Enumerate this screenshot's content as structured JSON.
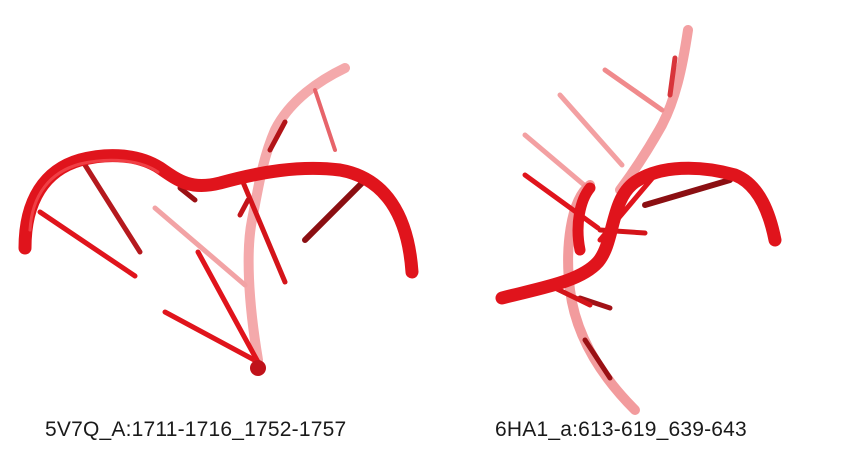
{
  "structures": [
    {
      "label": "5V7Q_A:1711-1716_1752-1757"
    },
    {
      "label": "6HA1_a:613-619_639-643"
    }
  ],
  "colors": {
    "backbone": "#e0141c",
    "backbone_faded": "#f08a8c",
    "base_dark": "#8b0f12",
    "base_mid": "#d4141a"
  }
}
